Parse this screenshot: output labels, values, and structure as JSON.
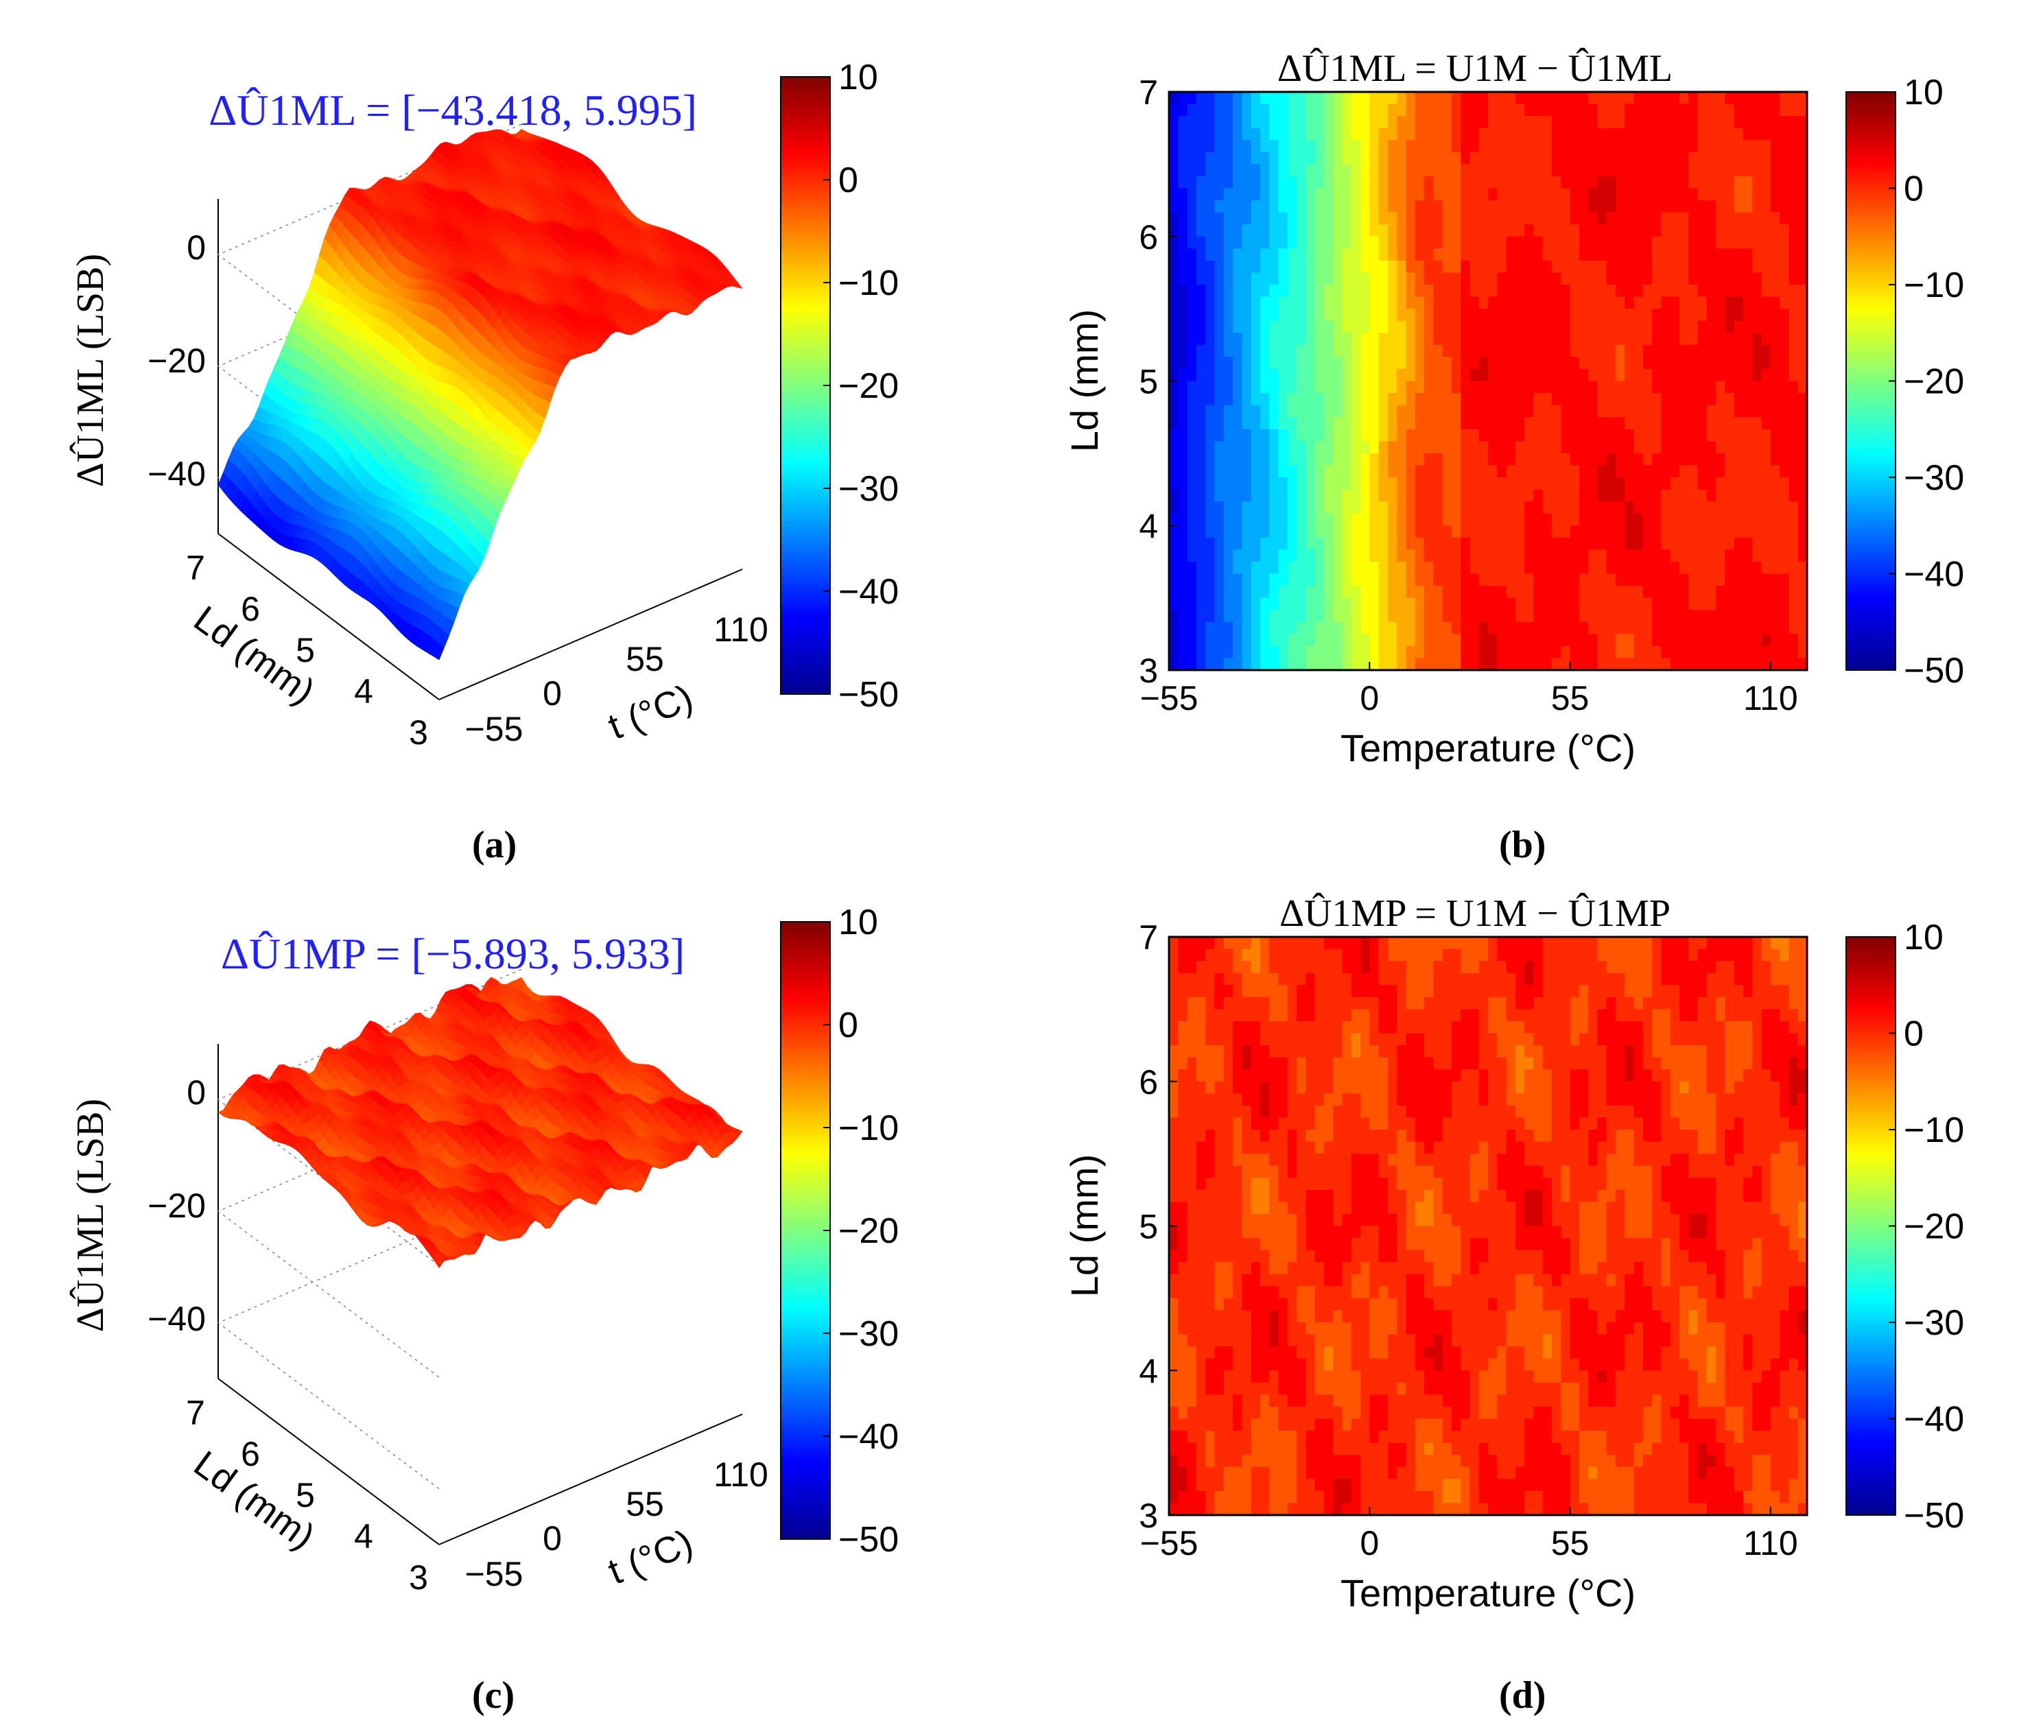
{
  "figure": {
    "captions": [
      "(a)",
      "(b)",
      "(c)",
      "(d)"
    ],
    "colormap": [
      "#00008f",
      "#0000ff",
      "#0080ff",
      "#00ffff",
      "#80ff80",
      "#ffff00",
      "#ff8000",
      "#ff0000"
    ],
    "contour_line_color": "#000000",
    "annotation_color": "#2020ff"
  },
  "chart_data": [
    {
      "id": "a",
      "type": "surface",
      "range_label": "ΔÛ1ML = [−43.418, 5.995]",
      "range": [
        -43.418,
        5.995
      ],
      "zlabel": "ΔÛ1ML (LSB)",
      "xlabel": "t (°C)",
      "ylabel": "Ld (mm)",
      "x_ticks": [
        "−55",
        "0",
        "55",
        "110"
      ],
      "y_ticks": [
        "3",
        "4",
        "5",
        "6",
        "7"
      ],
      "z_ticks": [
        "0",
        "−20",
        "−40"
      ],
      "zlim": [
        -50,
        10
      ],
      "clim": [
        -50,
        10
      ],
      "colorbar_ticks": [
        "10",
        "0",
        "−10",
        "−20",
        "−30",
        "−40",
        "−50"
      ],
      "grid": true
    },
    {
      "id": "b",
      "type": "contour",
      "title": "ΔÛ1ML = U1M − Û1ML",
      "xlabel": "Temperature (°C)",
      "ylabel": "Ld (mm)",
      "x_ticks": [
        "−55",
        "0",
        "55",
        "110"
      ],
      "y_ticks": [
        "3",
        "4",
        "5",
        "6",
        "7"
      ],
      "xlim": [
        -55,
        120
      ],
      "ylim": [
        3,
        7
      ],
      "clim": [
        -50,
        10
      ],
      "colorbar_ticks": [
        "10",
        "0",
        "−10",
        "−20",
        "−30",
        "−40",
        "−50"
      ]
    },
    {
      "id": "c",
      "type": "surface",
      "range_label": "ΔÛ1MP = [−5.893, 5.933]",
      "range": [
        -5.893,
        5.933
      ],
      "zlabel": "ΔÛ1ML (LSB)",
      "xlabel": "t (°C)",
      "ylabel": "Ld (mm)",
      "x_ticks": [
        "−55",
        "0",
        "55",
        "110"
      ],
      "y_ticks": [
        "3",
        "4",
        "5",
        "6",
        "7"
      ],
      "z_ticks": [
        "0",
        "−20",
        "−40"
      ],
      "zlim": [
        -50,
        10
      ],
      "clim": [
        -50,
        10
      ],
      "colorbar_ticks": [
        "10",
        "0",
        "−10",
        "−20",
        "−30",
        "−40",
        "−50"
      ],
      "grid": true
    },
    {
      "id": "d",
      "type": "contour",
      "title": "ΔÛ1MP = U1M − Û1MP",
      "xlabel": "Temperature (°C)",
      "ylabel": "Ld (mm)",
      "x_ticks": [
        "−55",
        "0",
        "55",
        "110"
      ],
      "y_ticks": [
        "3",
        "4",
        "5",
        "6",
        "7"
      ],
      "xlim": [
        -55,
        120
      ],
      "ylim": [
        3,
        7
      ],
      "clim": [
        -50,
        10
      ],
      "colorbar_ticks": [
        "10",
        "0",
        "−10",
        "−20",
        "−30",
        "−40",
        "−50"
      ]
    }
  ]
}
